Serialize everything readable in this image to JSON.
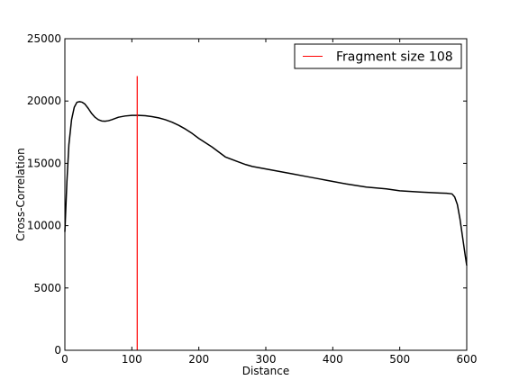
{
  "chart_data": {
    "type": "line",
    "xlabel": "Distance",
    "ylabel": "Cross-Correlation",
    "xlim": [
      0,
      600
    ],
    "ylim": [
      0,
      25000
    ],
    "xticks": [
      0,
      100,
      200,
      300,
      400,
      500,
      600
    ],
    "yticks": [
      0,
      5000,
      10000,
      15000,
      20000,
      25000
    ],
    "grid": false,
    "legend_position": "top-right",
    "series": [
      {
        "color": "#000000",
        "x": [
          0,
          3,
          6,
          10,
          14,
          18,
          22,
          26,
          30,
          35,
          40,
          45,
          50,
          55,
          60,
          65,
          70,
          75,
          80,
          90,
          100,
          110,
          120,
          130,
          140,
          150,
          160,
          170,
          180,
          190,
          200,
          220,
          240,
          260,
          270,
          280,
          300,
          320,
          340,
          360,
          380,
          390,
          400,
          420,
          450,
          480,
          500,
          530,
          560,
          570,
          578,
          582,
          586,
          590,
          594,
          598,
          600
        ],
        "y": [
          9500,
          13500,
          16500,
          18500,
          19500,
          19900,
          19950,
          19900,
          19750,
          19400,
          19000,
          18700,
          18500,
          18400,
          18380,
          18420,
          18500,
          18600,
          18700,
          18800,
          18850,
          18850,
          18820,
          18750,
          18650,
          18500,
          18300,
          18050,
          17750,
          17400,
          17000,
          16300,
          15500,
          15100,
          14900,
          14750,
          14550,
          14350,
          14150,
          13950,
          13750,
          13650,
          13550,
          13350,
          13100,
          12950,
          12800,
          12700,
          12620,
          12600,
          12550,
          12300,
          11700,
          10500,
          9000,
          7500,
          6800
        ]
      }
    ],
    "vlines": [
      {
        "name": "Fragment size 108",
        "x": 108,
        "ymin": 0,
        "ymax": 22000,
        "color": "#ff0000"
      }
    ],
    "legend": [
      {
        "label": "Fragment size 108",
        "color": "#ff0000"
      }
    ]
  }
}
